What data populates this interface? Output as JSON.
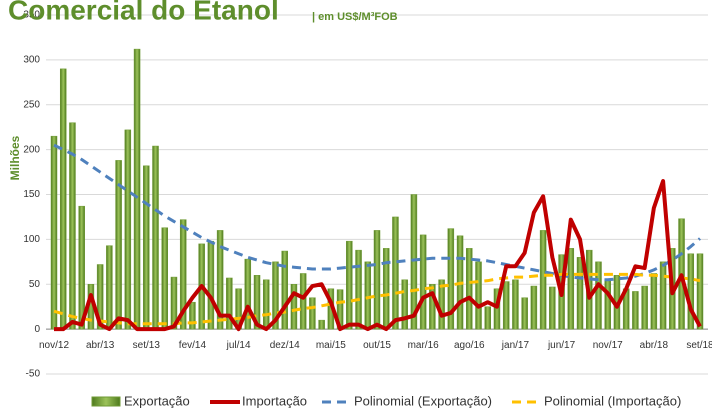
{
  "chart_data": {
    "type": "bar",
    "title": "Comercial do Etanol",
    "subtitle": "| em US$/M³FOB",
    "y_label": "Milhões",
    "categories": [
      "nov/12",
      null,
      null,
      null,
      null,
      "abr/13",
      null,
      null,
      null,
      null,
      "set/13",
      null,
      null,
      null,
      null,
      "fev/14",
      null,
      null,
      null,
      null,
      "jul/14",
      null,
      null,
      null,
      null,
      "dez/14",
      null,
      null,
      null,
      null,
      "mai/15",
      null,
      null,
      null,
      null,
      "out/15",
      null,
      null,
      null,
      null,
      "mar/16",
      null,
      null,
      null,
      null,
      "ago/16",
      null,
      null,
      null,
      null,
      "jan/17",
      null,
      null,
      null,
      null,
      "jun/17",
      null,
      null,
      null,
      null,
      "nov/17",
      null,
      null,
      null,
      null,
      "abr/18",
      null,
      null,
      null,
      null,
      "set/18"
    ],
    "series": [
      {
        "name": "Exportação",
        "type": "bar",
        "color": "#6f9a34",
        "values": [
          215,
          290,
          230,
          137,
          50,
          72,
          93,
          188,
          222,
          312,
          182,
          204,
          113,
          58,
          122,
          30,
          95,
          98,
          110,
          57,
          45,
          78,
          60,
          55,
          75,
          87,
          50,
          62,
          35,
          10,
          45,
          44,
          98,
          88,
          75,
          110,
          90,
          125,
          55,
          150,
          105,
          50,
          55,
          112,
          104,
          90,
          75,
          25,
          45,
          53,
          55,
          35,
          48,
          110,
          47,
          83,
          90,
          80,
          88,
          75,
          55,
          60,
          45,
          42,
          48,
          62,
          75,
          90,
          123,
          84,
          84
        ]
      },
      {
        "name": "Importação",
        "type": "line",
        "color": "#c00000",
        "values": [
          0,
          0,
          8,
          5,
          38,
          5,
          0,
          12,
          10,
          0,
          0,
          0,
          0,
          3,
          20,
          35,
          48,
          35,
          15,
          15,
          0,
          25,
          5,
          0,
          10,
          25,
          40,
          35,
          48,
          50,
          30,
          0,
          5,
          5,
          0,
          5,
          0,
          10,
          12,
          15,
          35,
          40,
          15,
          18,
          30,
          35,
          25,
          30,
          25,
          70,
          70,
          85,
          130,
          148,
          80,
          38,
          122,
          100,
          35,
          50,
          40,
          25,
          45,
          70,
          68,
          135,
          165,
          40,
          60,
          22,
          3
        ]
      },
      {
        "name": "Polinomial (Exportação)",
        "type": "dashed",
        "color": "#4f81bd",
        "values": [
          205,
          200,
          195,
          189,
          182,
          175,
          168,
          161,
          154,
          147,
          140,
          133,
          126,
          120,
          114,
          108,
          102,
          97,
          92,
          88,
          84,
          80,
          77,
          74,
          72,
          70,
          69,
          68,
          67,
          67,
          67,
          68,
          69,
          70,
          71,
          72,
          74,
          75,
          76,
          77,
          78,
          79,
          79,
          79,
          79,
          78,
          77,
          76,
          74,
          72,
          70,
          68,
          66,
          64,
          62,
          60,
          58,
          57,
          56,
          55,
          55,
          56,
          57,
          59,
          62,
          66,
          71,
          77,
          84,
          92,
          101
        ]
      },
      {
        "name": "Polinomial (Importação)",
        "type": "dashed",
        "color": "#ffc000",
        "values": [
          20,
          17,
          14,
          12,
          10,
          9,
          8,
          7,
          6,
          6,
          6,
          6,
          6,
          6,
          7,
          7,
          8,
          9,
          10,
          11,
          12,
          13,
          15,
          16,
          18,
          19,
          21,
          23,
          24,
          26,
          28,
          30,
          31,
          33,
          35,
          37,
          38,
          40,
          42,
          43,
          45,
          46,
          48,
          49,
          51,
          52,
          53,
          54,
          56,
          57,
          58,
          58,
          59,
          60,
          60,
          61,
          61,
          61,
          61,
          61,
          61,
          61,
          61,
          61,
          60,
          60,
          59,
          58,
          57,
          56,
          54
        ]
      }
    ],
    "ylim": [
      -50,
      350
    ],
    "yticks": [
      -50,
      0,
      50,
      100,
      150,
      200,
      250,
      300,
      350
    ],
    "grid": true
  }
}
